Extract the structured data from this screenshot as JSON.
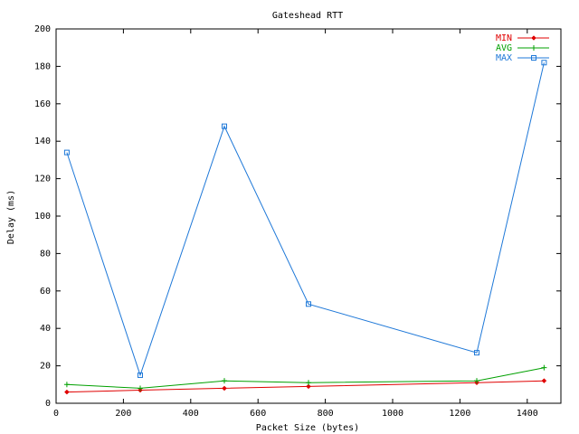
{
  "chart_data": {
    "type": "line",
    "title": "Gateshead RTT",
    "xlabel": "Packet Size (bytes)",
    "ylabel": "Delay (ms)",
    "xlim": [
      0,
      1500
    ],
    "ylim": [
      0,
      200
    ],
    "xticks": [
      0,
      200,
      400,
      600,
      800,
      1000,
      1200,
      1400
    ],
    "yticks": [
      0,
      20,
      40,
      60,
      80,
      100,
      120,
      140,
      160,
      180,
      200
    ],
    "grid": false,
    "legend_position": "top-right",
    "series": [
      {
        "name": "MIN",
        "color": "#e00000",
        "marker": "diamond",
        "x": [
          32,
          250,
          500,
          750,
          1250,
          1450
        ],
        "y": [
          6,
          7,
          8,
          9,
          11,
          12
        ]
      },
      {
        "name": "AVG",
        "color": "#00a000",
        "marker": "plus",
        "x": [
          32,
          250,
          500,
          750,
          1250,
          1450
        ],
        "y": [
          10,
          8,
          12,
          11,
          12,
          19
        ]
      },
      {
        "name": "MAX",
        "color": "#1e78d8",
        "marker": "square",
        "x": [
          32,
          250,
          500,
          750,
          1250,
          1450
        ],
        "y": [
          134,
          15,
          148,
          53,
          27,
          182
        ]
      }
    ]
  }
}
